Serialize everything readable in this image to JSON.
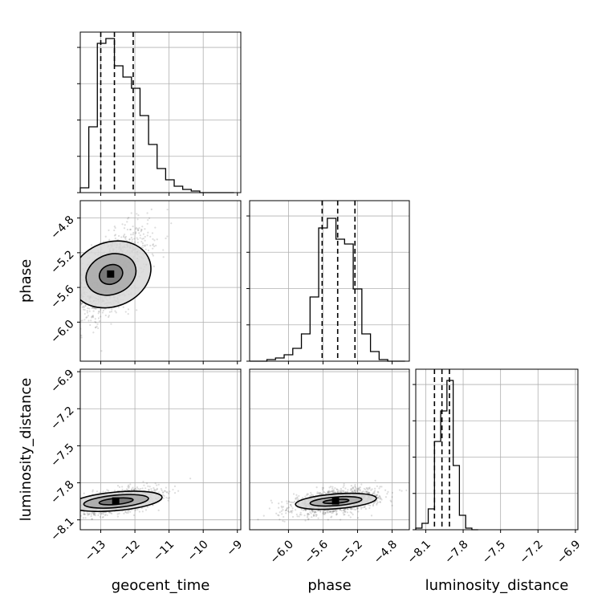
{
  "chart_data": {
    "type": "corner",
    "parameters": [
      {
        "name": "geocent_time",
        "range": [
          -13.6,
          -8.9
        ],
        "ticks": [
          -13,
          -12,
          -11,
          -10,
          -9
        ],
        "tick_labels": [
          "−13",
          "−12",
          "−11",
          "−10",
          "−9"
        ],
        "quantiles": [
          -13.0,
          -12.6,
          -12.05
        ],
        "histogram": {
          "bin_start": -13.6,
          "bin_width": 0.25,
          "counts": [
            0.03,
            0.41,
            0.93,
            0.96,
            0.79,
            0.72,
            0.65,
            0.48,
            0.3,
            0.15,
            0.08,
            0.04,
            0.02,
            0.01,
            0.0,
            0.0,
            0.0,
            0.0
          ]
        }
      },
      {
        "name": "phase",
        "range": [
          -6.45,
          -4.6
        ],
        "ticks": [
          -6.0,
          -5.6,
          -5.2,
          -4.8
        ],
        "tick_labels": [
          "−6.0",
          "−5.6",
          "−5.2",
          "−4.8"
        ],
        "quantiles": [
          -5.61,
          -5.43,
          -5.23
        ],
        "histogram": {
          "bin_start": -6.45,
          "bin_width": 0.1,
          "counts": [
            0.0,
            0.0,
            0.01,
            0.02,
            0.04,
            0.08,
            0.17,
            0.4,
            0.83,
            0.89,
            0.76,
            0.73,
            0.45,
            0.17,
            0.06,
            0.01,
            0.0,
            0.0
          ]
        }
      },
      {
        "name": "luminosity_distance",
        "range": [
          -8.18,
          -6.88
        ],
        "ticks": [
          -8.1,
          -7.8,
          -7.5,
          -7.2,
          -6.9
        ],
        "tick_labels": [
          "−8.1",
          "−7.8",
          "−7.5",
          "−7.2",
          "−6.9"
        ],
        "quantiles": [
          -8.03,
          -7.97,
          -7.91
        ],
        "histogram": {
          "bin_start": -8.18,
          "bin_width": 0.05,
          "counts": [
            0.01,
            0.04,
            0.13,
            0.55,
            0.74,
            0.93,
            0.4,
            0.09,
            0.01,
            0.0
          ]
        }
      }
    ],
    "scatter_panels": [
      {
        "x": "geocent_time",
        "y": "phase",
        "center": [
          -12.7,
          -5.45
        ],
        "sigma": [
          0.55,
          0.26
        ],
        "corr": 0.6,
        "contour_widths": [
          [
            0.35,
            0.11
          ],
          [
            0.75,
            0.23
          ],
          [
            1.2,
            0.37
          ]
        ]
      },
      {
        "x": "geocent_time",
        "y": "luminosity_distance",
        "center": [
          -12.55,
          -7.95
        ],
        "sigma": [
          0.6,
          0.05
        ],
        "corr": 0.5,
        "contour_widths": [
          [
            0.5,
            0.025
          ],
          [
            0.95,
            0.05
          ],
          [
            1.35,
            0.075
          ]
        ]
      },
      {
        "x": "phase",
        "y": "luminosity_distance",
        "center": [
          -5.45,
          -7.95
        ],
        "sigma": [
          0.25,
          0.05
        ],
        "corr": 0.45,
        "contour_widths": [
          [
            0.15,
            0.015
          ],
          [
            0.3,
            0.035
          ],
          [
            0.47,
            0.06
          ]
        ]
      }
    ],
    "grid": true,
    "ylabels": [
      "",
      "phase",
      "luminosity_distance"
    ],
    "xlabels": [
      "geocent_time",
      "phase",
      "luminosity_distance"
    ]
  },
  "colors": {
    "line": "#000000",
    "grid": "#b0b0b0",
    "points": "#404040"
  }
}
